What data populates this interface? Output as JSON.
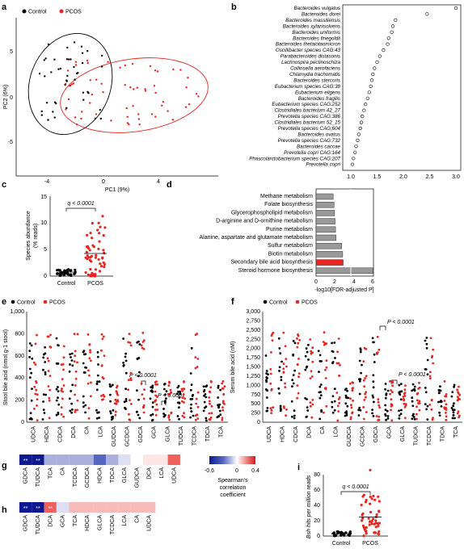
{
  "figure": {
    "panel_letters": [
      "a",
      "b",
      "c",
      "d",
      "e",
      "f",
      "g",
      "h",
      "i"
    ]
  },
  "panel_a": {
    "legend": [
      "Control",
      "PCOS"
    ],
    "xlabel": "PC1 (9%)",
    "ylabel": "PC2 (6%)",
    "xticks": [
      "-4",
      "0",
      "4"
    ],
    "yticks": [
      "5",
      "0",
      "-5"
    ],
    "colors": {
      "control": "#000000",
      "pcos": "#e8251f"
    }
  },
  "panel_b": {
    "species": [
      "Bacteroides vulgatus",
      "Bacteroides dorei",
      "Bacteroides massiliensis",
      "Bacteroides xylanisolvens",
      "Bacteroides uniformis",
      "Bacteroides finegoldii",
      "Bacteroides thetaiotaomicron",
      "Oscillibacter species CAG:43",
      "Parabacteroides distasonis",
      "Lachnospira pectinoschiza",
      "Collinsella aerofaciens",
      "Chlamydia trachomatis",
      "Bacteroides stercoris",
      "Eubacterium species CAG:38",
      "Eubacterium eligens",
      "Bacteroides fragilis",
      "Eubacterium species CAG:252",
      "Clostridiales bacterium 42_27",
      "Prevotella species CAG:386",
      "Clostridiales bacterium 52_15",
      "Prevotella species CAG:604",
      "Bacteroides ovatus",
      "Prevotella species CAG:732",
      "Bacteroides caccae",
      "Prevotella copri CAG:164",
      "Phascolarctobacterium species CAG:207",
      "Prevotella copri"
    ],
    "xticks": [
      "1.0",
      "1.5",
      "2.0",
      "2.5",
      "3.0"
    ]
  },
  "panel_c": {
    "ylabel_line1": "Species abundance",
    "ylabel_line2": "(% reads)",
    "yticks": [
      "0",
      "5",
      "10",
      "15"
    ],
    "categories": [
      "Control",
      "PCOS"
    ],
    "annotation": "q < 0.0001"
  },
  "panel_d": {
    "pathways": [
      "Methane metabolism",
      "Folate biosynthesis",
      "Glycerophospholipid metabolism",
      "D-arginine and D-ornithine metabolism",
      "Purine metabolism",
      "Alanine, aspartate and glutamate metabolism",
      "Sulfur metabolism",
      "Biotin metabolism",
      "Secondary bile acid biosynthesis",
      "Steroid hormone biosynthesis"
    ],
    "xticks": [
      "0",
      "2",
      "4",
      "6"
    ],
    "xlabel": "-log10[FDR-adjusted P]"
  },
  "panel_e": {
    "legend": [
      "Control",
      "PCOS"
    ],
    "ylabel": "Stool bile acid (nmol g-1 stool)",
    "yticks": [
      "0",
      "200",
      "400",
      "600",
      "800",
      "1,000"
    ],
    "categories": [
      "UDCA",
      "HDCA",
      "CDCA",
      "DCA",
      "CA",
      "LCA",
      "GUDCA",
      "GCDCA",
      "GDCA",
      "GCA",
      "GLCA",
      "TUDCA",
      "TCDCA",
      "TDCA",
      "TCA"
    ],
    "annotations": [
      "P < 0.0001",
      "P < 0.0001"
    ]
  },
  "panel_f": {
    "legend": [
      "Control",
      "PCOS"
    ],
    "ylabel": "Serum bile acid (nM)",
    "yticks": [
      "0",
      "250",
      "500",
      "750",
      "1,000",
      "1,250",
      "1,500",
      "1,750",
      "2,000",
      "2,250",
      "2,500",
      "2,750",
      "3,000"
    ],
    "categories": [
      "UDCA",
      "HDCA",
      "CDCA",
      "DCA",
      "CA",
      "LCA",
      "GUDCA",
      "GCDCA",
      "GDCA",
      "GCA",
      "GLCA",
      "TUDCA",
      "TCDCA",
      "TDCA",
      "TCA"
    ],
    "annotations": [
      "P < 0.0001",
      "P < 0.0001"
    ]
  },
  "panel_g": {
    "labels": [
      "GDCA",
      "TUDCA",
      "TCA",
      "CA",
      "TCDCA",
      "GCDCA",
      "HDCA",
      "TDCA",
      "GLCA",
      "GUDCA",
      "DCA",
      "LCA",
      "UDCA"
    ],
    "stars": [
      "**",
      "**"
    ]
  },
  "panel_h": {
    "labels": [
      "GDCA",
      "TUDCA",
      "DCA",
      "GCA",
      "TCA",
      "HDCA",
      "GLCA",
      "TCDCA",
      "LCA",
      "CA",
      "UDCA"
    ],
    "stars": [
      "**",
      "**",
      "**"
    ]
  },
  "colorbar": {
    "ticks": [
      "-0.6",
      "0",
      "0.4"
    ],
    "label_line1": "Spearman's",
    "label_line2": "correlation",
    "label_line3": "coefficient"
  },
  "panel_i": {
    "ylabel": "Bsh hits per million reads",
    "yticks": [
      "0",
      "20",
      "40",
      "60",
      "80"
    ],
    "categories": [
      "Control",
      "PCOS"
    ],
    "annotation": "q < 0.0001"
  }
}
